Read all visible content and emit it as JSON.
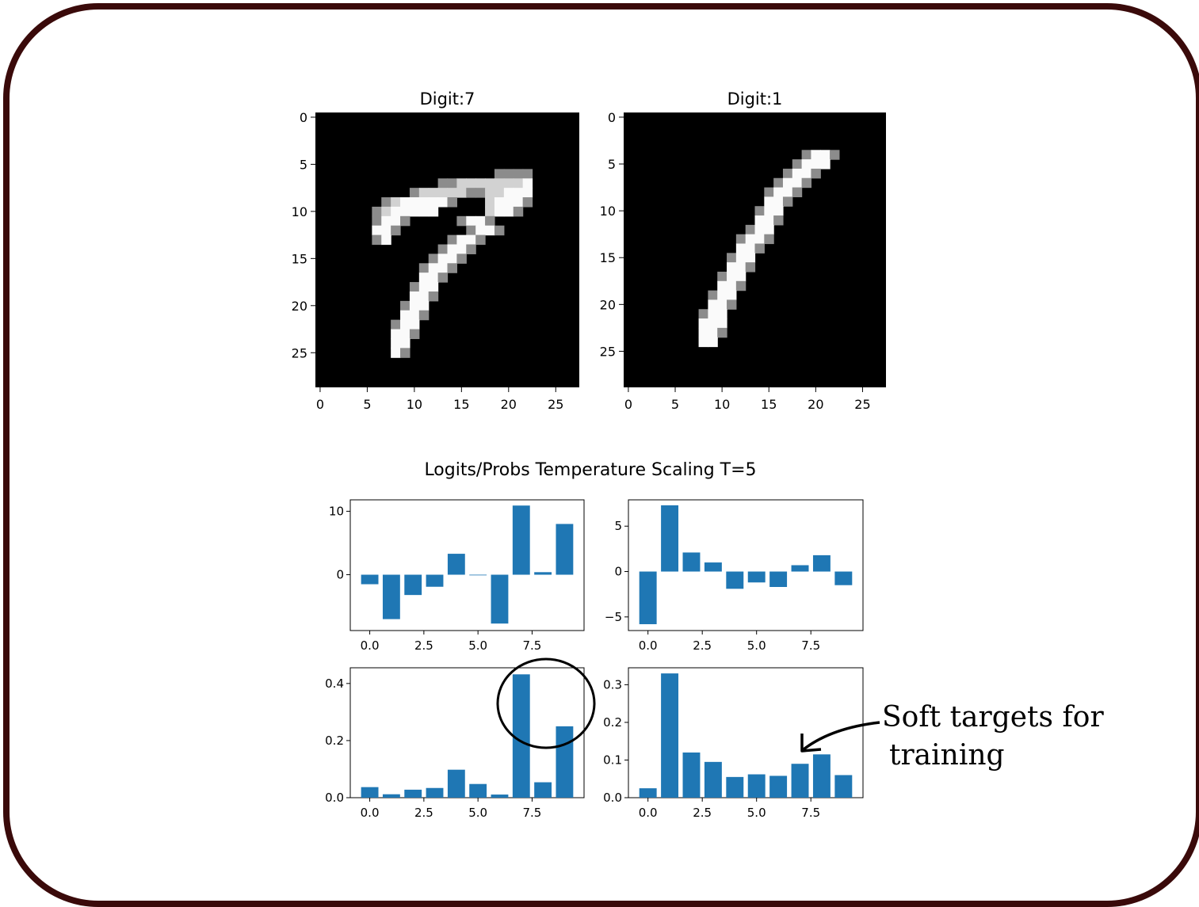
{
  "figure": {
    "suptitle": "Logits/Probs Temperature Scaling T=5",
    "annotation_line1": "Soft targets for",
    "annotation_line2": "training",
    "bar_color": "#1f77b4",
    "frame_color": "#3a0a0a"
  },
  "chart_data": [
    {
      "type": "heatmap",
      "title": "Digit:7",
      "colormap": "gray",
      "xlim": [
        0,
        27
      ],
      "ylim": [
        27,
        0
      ],
      "xticks": [
        0,
        5,
        10,
        15,
        20,
        25
      ],
      "yticks": [
        0,
        5,
        10,
        15,
        20,
        25
      ],
      "rows": [
        "............................",
        "............................",
        "............................",
        "............................",
        "............................",
        "............................",
        "...................++++.....",
        ".............++*******#.....",
        "..........+*****++**###.....",
        ".......+*#####+...*###+.....",
        "......+*#####.....*##+......",
        "......+##+.....+##+.........",
        "......##+.......+##+........",
        "......+#......+##+..........",
        ".............+##+...........",
        "............+##+............",
        "...........+##+.............",
        "...........##+..............",
        "..........+##...............",
        "..........##+...............",
        ".........+##................",
        ".........##+................",
        "........+##.................",
        "........##+.................",
        "........##..................",
        "........#+..................",
        "............................",
        "............................"
      ]
    },
    {
      "type": "heatmap",
      "title": "Digit:1",
      "colormap": "gray",
      "xlim": [
        0,
        27
      ],
      "ylim": [
        27,
        0
      ],
      "xticks": [
        0,
        5,
        10,
        15,
        20,
        25
      ],
      "yticks": [
        0,
        5,
        10,
        15,
        20,
        25
      ],
      "rows": [
        "............................",
        "............................",
        "............................",
        "............................",
        "...................+##+.....",
        "..................+###......",
        ".................+##+.......",
        "................+##+........",
        "...............+##+.........",
        "...............##+..........",
        "..............+##...........",
        "..............##+...........",
        ".............+##............",
        "............+##+............",
        "............##+.............",
        "...........+##..............",
        "...........##+..............",
        "..........+##...............",
        "..........##+...............",
        ".........+##................",
        ".........##+................",
        "........+##.................",
        "........###.................",
        "........##+.................",
        "........##..................",
        "............................",
        "............................",
        "............................"
      ]
    },
    {
      "type": "bar",
      "series": "logits",
      "digit": 7,
      "x": [
        0,
        1,
        2,
        3,
        4,
        5,
        6,
        7,
        8,
        9
      ],
      "values": [
        -1.5,
        -7.0,
        -3.2,
        -1.9,
        3.3,
        -0.1,
        -7.7,
        10.9,
        0.4,
        8.0
      ],
      "xticks": [
        "0.0",
        "2.5",
        "5.0",
        "7.5"
      ],
      "yticks": [
        "10",
        "0"
      ],
      "xlim": [
        -0.9,
        9.9
      ],
      "ylim": [
        -8.8,
        11.8
      ]
    },
    {
      "type": "bar",
      "series": "logits",
      "digit": 1,
      "x": [
        0,
        1,
        2,
        3,
        4,
        5,
        6,
        7,
        8,
        9
      ],
      "values": [
        -5.8,
        7.3,
        2.1,
        1.0,
        -1.9,
        -1.2,
        -1.7,
        0.7,
        1.8,
        -1.5
      ],
      "xticks": [
        "0.0",
        "2.5",
        "5.0",
        "7.5"
      ],
      "yticks": [
        "5",
        "0",
        "−5"
      ],
      "xlim": [
        -0.9,
        9.9
      ],
      "ylim": [
        -6.5,
        7.9
      ]
    },
    {
      "type": "bar",
      "series": "probs",
      "digit": 7,
      "x": [
        0,
        1,
        2,
        3,
        4,
        5,
        6,
        7,
        8,
        9
      ],
      "values": [
        0.037,
        0.012,
        0.028,
        0.034,
        0.098,
        0.048,
        0.011,
        0.432,
        0.054,
        0.25
      ],
      "xticks": [
        "0.0",
        "2.5",
        "5.0",
        "7.5"
      ],
      "yticks": [
        "0.4",
        "0.2",
        "0.0"
      ],
      "xlim": [
        -0.9,
        9.9
      ],
      "ylim": [
        0,
        0.455
      ]
    },
    {
      "type": "bar",
      "series": "probs",
      "digit": 1,
      "x": [
        0,
        1,
        2,
        3,
        4,
        5,
        6,
        7,
        8,
        9
      ],
      "values": [
        0.025,
        0.33,
        0.12,
        0.095,
        0.055,
        0.062,
        0.058,
        0.09,
        0.115,
        0.06
      ],
      "xticks": [
        "0.0",
        "2.5",
        "5.0",
        "7.5"
      ],
      "yticks": [
        "0.3",
        "0.2",
        "0.1",
        "0.0"
      ],
      "xlim": [
        -0.9,
        9.9
      ],
      "ylim": [
        0,
        0.345
      ]
    }
  ]
}
